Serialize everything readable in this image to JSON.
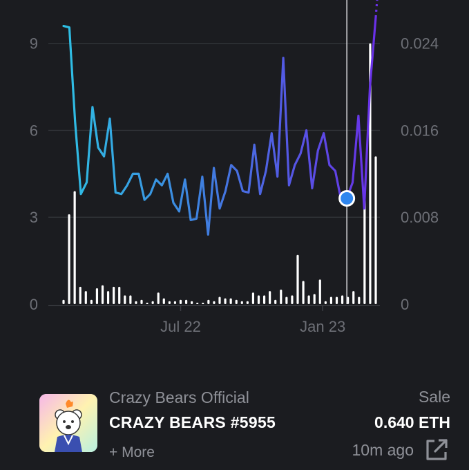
{
  "chart_data": {
    "type": "line",
    "y_left_ticks": [
      "9",
      "6",
      "3",
      "0"
    ],
    "y_right_ticks": [
      "0.024",
      "0.016",
      "0.008",
      "0"
    ],
    "y_left_range": [
      0,
      9.9
    ],
    "y_right_range": [
      0,
      0.0264
    ],
    "x_tick_labels": [
      "Jul 22",
      "Jan 23"
    ],
    "grid": "horizontal",
    "series": [
      {
        "role": "line",
        "values": [
          9.6,
          9.55,
          6.3,
          3.8,
          4.2,
          6.8,
          5.4,
          5.1,
          6.4,
          3.85,
          3.8,
          4.1,
          4.5,
          4.5,
          3.6,
          3.8,
          4.3,
          4.1,
          4.5,
          3.5,
          3.2,
          4.3,
          2.9,
          2.95,
          4.4,
          2.4,
          4.7,
          3.3,
          3.9,
          4.8,
          4.6,
          3.9,
          3.85,
          5.5,
          3.8,
          4.6,
          5.9,
          4.4,
          8.5,
          4.1,
          4.8,
          5.2,
          6.0,
          4.0,
          5.3,
          5.9,
          4.8,
          4.6,
          3.6,
          3.65,
          4.2,
          6.5,
          3.3,
          7.5,
          9.9
        ]
      },
      {
        "role": "volume",
        "values": [
          0.15,
          3.1,
          3.9,
          0.6,
          0.45,
          0.15,
          0.55,
          0.65,
          0.45,
          0.6,
          0.6,
          0.3,
          0.3,
          0.1,
          0.15,
          0.05,
          0.1,
          0.4,
          0.2,
          0.1,
          0.1,
          0.15,
          0.15,
          0.1,
          0.05,
          0.05,
          0.15,
          0.1,
          0.25,
          0.2,
          0.2,
          0.15,
          0.1,
          0.1,
          0.4,
          0.3,
          0.3,
          0.45,
          0.15,
          0.5,
          0.25,
          0.3,
          1.7,
          0.8,
          0.3,
          0.35,
          0.85,
          0.1,
          0.25,
          0.25,
          0.3,
          0.25,
          0.45,
          0.25,
          3.6,
          9.0,
          5.1
        ]
      }
    ],
    "highlight": {
      "index": 49,
      "value": 3.65
    }
  },
  "card": {
    "collection": "Crazy Bears Official",
    "item_name": "CRAZY BEARS #5955",
    "more": "+ More",
    "sale_type": "Sale",
    "price": "0.640 ETH",
    "time": "10m ago"
  },
  "colors": {
    "background": "#1b1c20",
    "line_start": "#2ec0e4",
    "line_mid": "#3f7fe0",
    "line_end": "#6a30e8",
    "volume_bar": "#ffffff",
    "highlight": "#2f86ee"
  }
}
